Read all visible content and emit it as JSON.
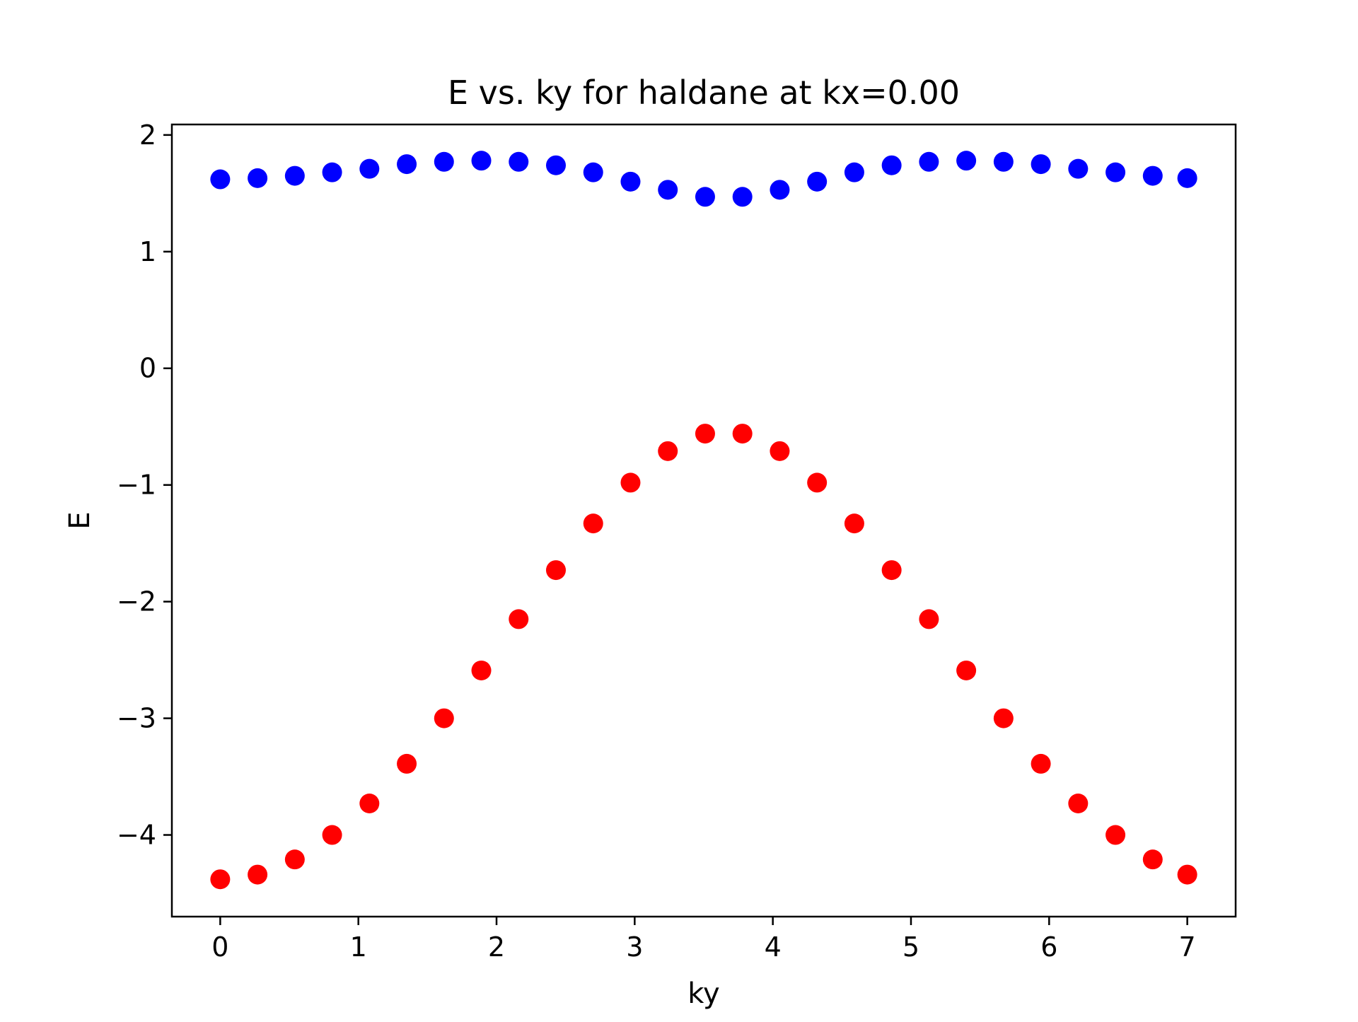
{
  "chart_data": {
    "type": "scatter",
    "title": "E vs. ky for haldane at kx=0.00",
    "xlabel": "ky",
    "ylabel": "E",
    "xlim": [
      -0.35,
      7.35
    ],
    "ylim": [
      -4.7,
      2.09
    ],
    "x_ticks": [
      0,
      1,
      2,
      3,
      4,
      5,
      6,
      7
    ],
    "y_ticks": [
      2,
      1,
      0,
      -1,
      -2,
      -3,
      -4
    ],
    "x_tick_labels": [
      "0",
      "1",
      "2",
      "3",
      "4",
      "5",
      "6",
      "7"
    ],
    "y_tick_labels": [
      "2",
      "1",
      "0",
      "−1",
      "−2",
      "−3",
      "−4"
    ],
    "grid": false,
    "legend": "none",
    "x": [
      0.0,
      0.27,
      0.54,
      0.81,
      1.08,
      1.35,
      1.62,
      1.89,
      2.16,
      2.43,
      2.7,
      2.97,
      3.24,
      3.51,
      3.78,
      4.05,
      4.32,
      4.59,
      4.86,
      5.13,
      5.4,
      5.67,
      5.94,
      6.21,
      6.48,
      6.75,
      7.0
    ],
    "series": [
      {
        "color": "#0000ff",
        "values": [
          1.62,
          1.63,
          1.65,
          1.68,
          1.71,
          1.75,
          1.77,
          1.78,
          1.77,
          1.74,
          1.68,
          1.6,
          1.53,
          1.47,
          1.47,
          1.53,
          1.6,
          1.68,
          1.74,
          1.77,
          1.78,
          1.77,
          1.75,
          1.71,
          1.68,
          1.65,
          1.63
        ]
      },
      {
        "color": "#ff0000",
        "values": [
          -4.38,
          -4.34,
          -4.21,
          -4.0,
          -3.73,
          -3.39,
          -3.0,
          -2.59,
          -2.15,
          -1.73,
          -1.33,
          -0.98,
          -0.71,
          -0.56,
          -0.56,
          -0.71,
          -0.98,
          -1.33,
          -1.73,
          -2.15,
          -2.59,
          -3.0,
          -3.39,
          -3.73,
          -4.0,
          -4.21,
          -4.34
        ]
      }
    ]
  }
}
